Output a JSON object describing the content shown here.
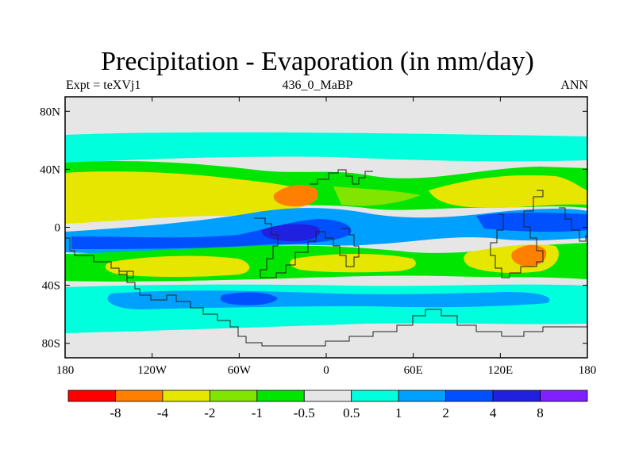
{
  "title": "Precipitation - Evaporation (in mm/day)",
  "subtitle_left": "Expt = teXVj1",
  "subtitle_center": "436_0_MaBP",
  "subtitle_right": "ANN",
  "x_ticks": [
    {
      "value": -180,
      "label": "180"
    },
    {
      "value": -120,
      "label": "120W"
    },
    {
      "value": -60,
      "label": "60W"
    },
    {
      "value": 0,
      "label": "0"
    },
    {
      "value": 60,
      "label": "60E"
    },
    {
      "value": 120,
      "label": "120E"
    },
    {
      "value": 180,
      "label": "180"
    }
  ],
  "y_ticks": [
    {
      "value": 80,
      "label": "80N"
    },
    {
      "value": 40,
      "label": "40N"
    },
    {
      "value": 0,
      "label": "0"
    },
    {
      "value": -40,
      "label": "40S"
    },
    {
      "value": -80,
      "label": "80S"
    }
  ],
  "colorbar": {
    "colors": [
      "#ff0000",
      "#ff8000",
      "#e6e600",
      "#80e600",
      "#00e600",
      "#e6e6e6",
      "#00ffdd",
      "#00a0ff",
      "#0050ff",
      "#2020e0",
      "#8020ff"
    ],
    "labels": [
      "-8",
      "-4",
      "-2",
      "-1",
      "-0.5",
      "0.5",
      "1",
      "2",
      "4",
      "8"
    ]
  },
  "palette": {
    "neutral": "#e6e6e6",
    "cyan": "#00ffdd",
    "blue2": "#00a0ff",
    "blue4": "#0050ff",
    "blue8": "#2020e0",
    "green1": "#00e600",
    "lime": "#80e600",
    "yellow": "#e6e600",
    "orange": "#ff8000",
    "red": "#ff0000"
  }
}
